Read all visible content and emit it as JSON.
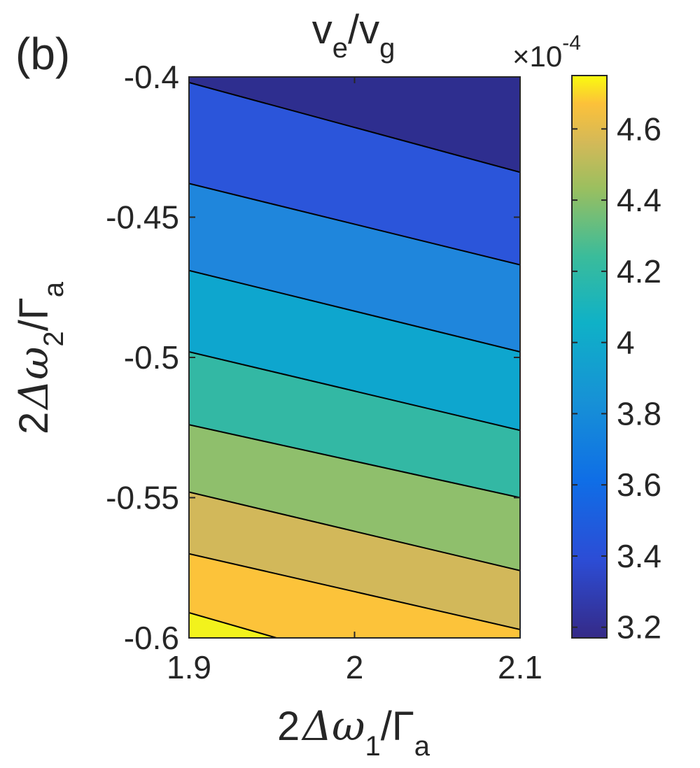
{
  "chart_data": {
    "type": "contour",
    "panel_label": "(b)",
    "title": {
      "main": "v",
      "sub1": "e",
      "slash": "/",
      "main2": "v",
      "sub2": "g"
    },
    "xlabel": {
      "prefix": "2",
      "delta": "Δ",
      "omega": "ω",
      "sub": "1",
      "slash": "/",
      "gamma": "Γ",
      "gsub": "a"
    },
    "ylabel": {
      "prefix": "2",
      "delta": "Δ",
      "omega": "ω",
      "sub": "2",
      "slash": "/",
      "gamma": "Γ",
      "gsub": "a"
    },
    "xlim": [
      1.9,
      2.1
    ],
    "ylim": [
      -0.6,
      -0.4
    ],
    "x_ticks": [
      1.9,
      2.0,
      2.1
    ],
    "x_tick_labels": [
      "1.9",
      "2",
      "2.1"
    ],
    "y_ticks": [
      -0.4,
      -0.45,
      -0.5,
      -0.55,
      -0.6
    ],
    "y_tick_labels": [
      "-0.4",
      "-0.45",
      "-0.5",
      "-0.55",
      "-0.6"
    ],
    "colorbar": {
      "multiplier_prefix": "×10",
      "multiplier_exp": "-4",
      "range": [
        3.17,
        4.75
      ],
      "ticks": [
        3.2,
        3.4,
        3.6,
        3.8,
        4.0,
        4.2,
        4.4,
        4.6
      ],
      "tick_labels": [
        "3.2",
        "3.4",
        "3.6",
        "3.8",
        "4",
        "4.2",
        "4.4",
        "4.6"
      ],
      "colormap": "parula"
    },
    "contour_lines": [
      {
        "y_at_x_min": -0.402,
        "y_at_x_max": -0.434
      },
      {
        "y_at_x_min": -0.438,
        "y_at_x_max": -0.467
      },
      {
        "y_at_x_min": -0.469,
        "y_at_x_max": -0.498
      },
      {
        "y_at_x_min": -0.498,
        "y_at_x_max": -0.526
      },
      {
        "y_at_x_min": -0.524,
        "y_at_x_max": -0.55
      },
      {
        "y_at_x_min": -0.548,
        "y_at_x_max": -0.576
      },
      {
        "y_at_x_min": -0.57,
        "y_at_x_max": -0.597
      },
      {
        "y_at_x_min": -0.591,
        "y_at_x_max": -0.625
      }
    ],
    "bands": [
      {
        "level": 3.2,
        "color": "#2e2e8f"
      },
      {
        "level": 3.35,
        "color": "#2b55da"
      },
      {
        "level": 3.6,
        "color": "#1f86dc"
      },
      {
        "level": 3.8,
        "color": "#0ea6ce"
      },
      {
        "level": 3.95,
        "color": "#33b8a4"
      },
      {
        "level": 4.15,
        "color": "#8fbf6c"
      },
      {
        "level": 4.4,
        "color": "#d2b85a"
      },
      {
        "level": 4.55,
        "color": "#fcc33a"
      },
      {
        "level": 4.7,
        "color": "#f2f21c"
      }
    ]
  }
}
